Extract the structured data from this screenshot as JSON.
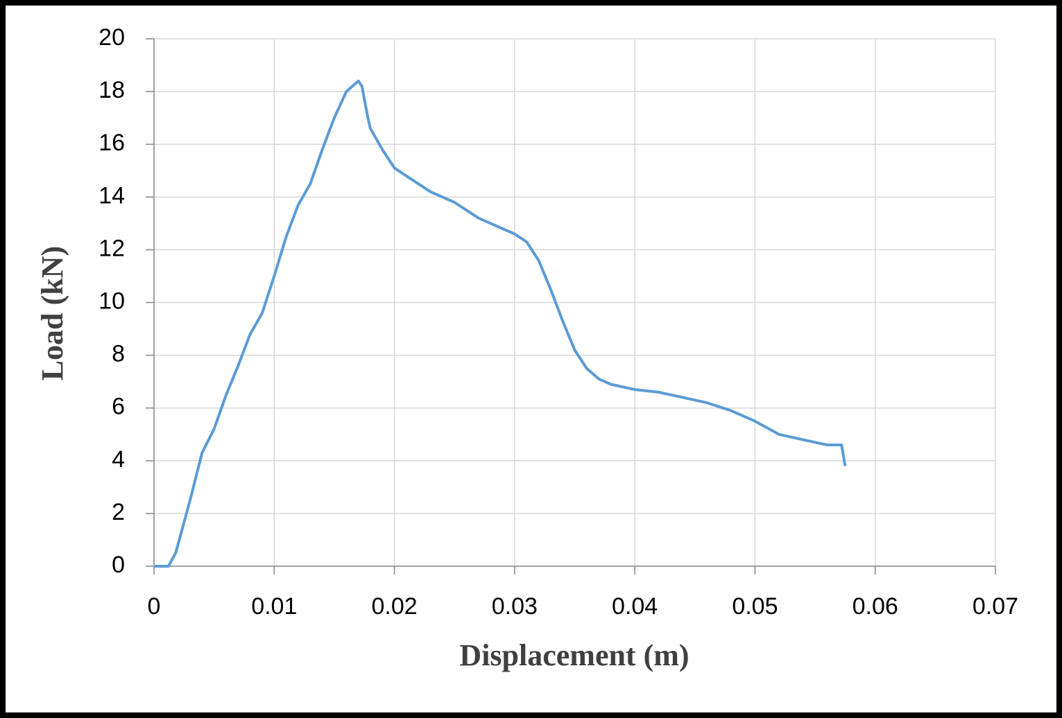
{
  "chart_data": {
    "type": "line",
    "x_label": "Displacement  (m)",
    "y_label": "Load (kN)",
    "x": [
      0,
      0.0012,
      0.0018,
      0.003,
      0.004,
      0.005,
      0.006,
      0.007,
      0.008,
      0.009,
      0.01,
      0.011,
      0.012,
      0.013,
      0.014,
      0.015,
      0.016,
      0.017,
      0.0173,
      0.0178,
      0.018,
      0.019,
      0.02,
      0.021,
      0.022,
      0.023,
      0.024,
      0.025,
      0.026,
      0.027,
      0.028,
      0.029,
      0.03,
      0.031,
      0.032,
      0.033,
      0.034,
      0.035,
      0.036,
      0.037,
      0.038,
      0.039,
      0.04,
      0.042,
      0.044,
      0.046,
      0.048,
      0.05,
      0.052,
      0.054,
      0.056,
      0.0572,
      0.0575
    ],
    "values": [
      0,
      0,
      0.5,
      2.5,
      4.3,
      5.2,
      6.5,
      7.6,
      8.8,
      9.6,
      11,
      12.5,
      13.7,
      14.5,
      15.8,
      17,
      18,
      18.4,
      18.2,
      17,
      16.6,
      15.8,
      15.1,
      14.8,
      14.5,
      14.2,
      14.0,
      13.8,
      13.5,
      13.2,
      13.0,
      12.8,
      12.6,
      12.3,
      11.6,
      10.5,
      9.3,
      8.2,
      7.5,
      7.1,
      6.9,
      6.8,
      6.7,
      6.6,
      6.4,
      6.2,
      5.9,
      5.5,
      5.0,
      4.8,
      4.6,
      4.6,
      3.8
    ],
    "color": "#5b9bd5",
    "xlim": [
      0,
      0.07
    ],
    "xticks": [
      0,
      0.01,
      0.02,
      0.03,
      0.04,
      0.05,
      0.06,
      0.07
    ],
    "ylim": [
      0,
      20
    ],
    "yticks": [
      0,
      2,
      4,
      6,
      8,
      10,
      12,
      14,
      16,
      18,
      20
    ],
    "grid": true
  }
}
